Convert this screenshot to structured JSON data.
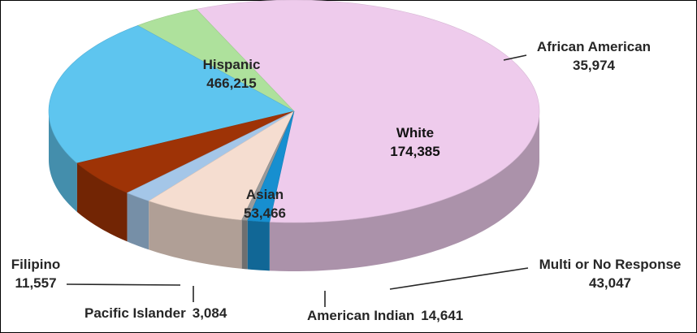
{
  "chart_data": {
    "type": "pie",
    "title": "",
    "style": "3d",
    "slices": [
      {
        "label": "Hispanic",
        "value": 466215,
        "display": "466,215",
        "color": "#EECBEC"
      },
      {
        "label": "African American",
        "value": 35974,
        "display": "35,974",
        "color": "#AEE19C"
      },
      {
        "label": "White",
        "value": 174385,
        "display": "174,385",
        "color": "#5EC5EF"
      },
      {
        "label": "Multi or No Response",
        "value": 43047,
        "display": "43,047",
        "color": "#9E3306"
      },
      {
        "label": "American Indian",
        "value": 14641,
        "display": "14,641",
        "color": "#A4C6E8"
      },
      {
        "label": "Asian",
        "value": 53466,
        "display": "53,466",
        "color": "#F5DDD0"
      },
      {
        "label": "Pacific Islander",
        "value": 3084,
        "display": "3,084",
        "color": "#9A9A9A"
      },
      {
        "label": "Filipino",
        "value": 11557,
        "display": "11,557",
        "color": "#178FD0"
      }
    ]
  }
}
